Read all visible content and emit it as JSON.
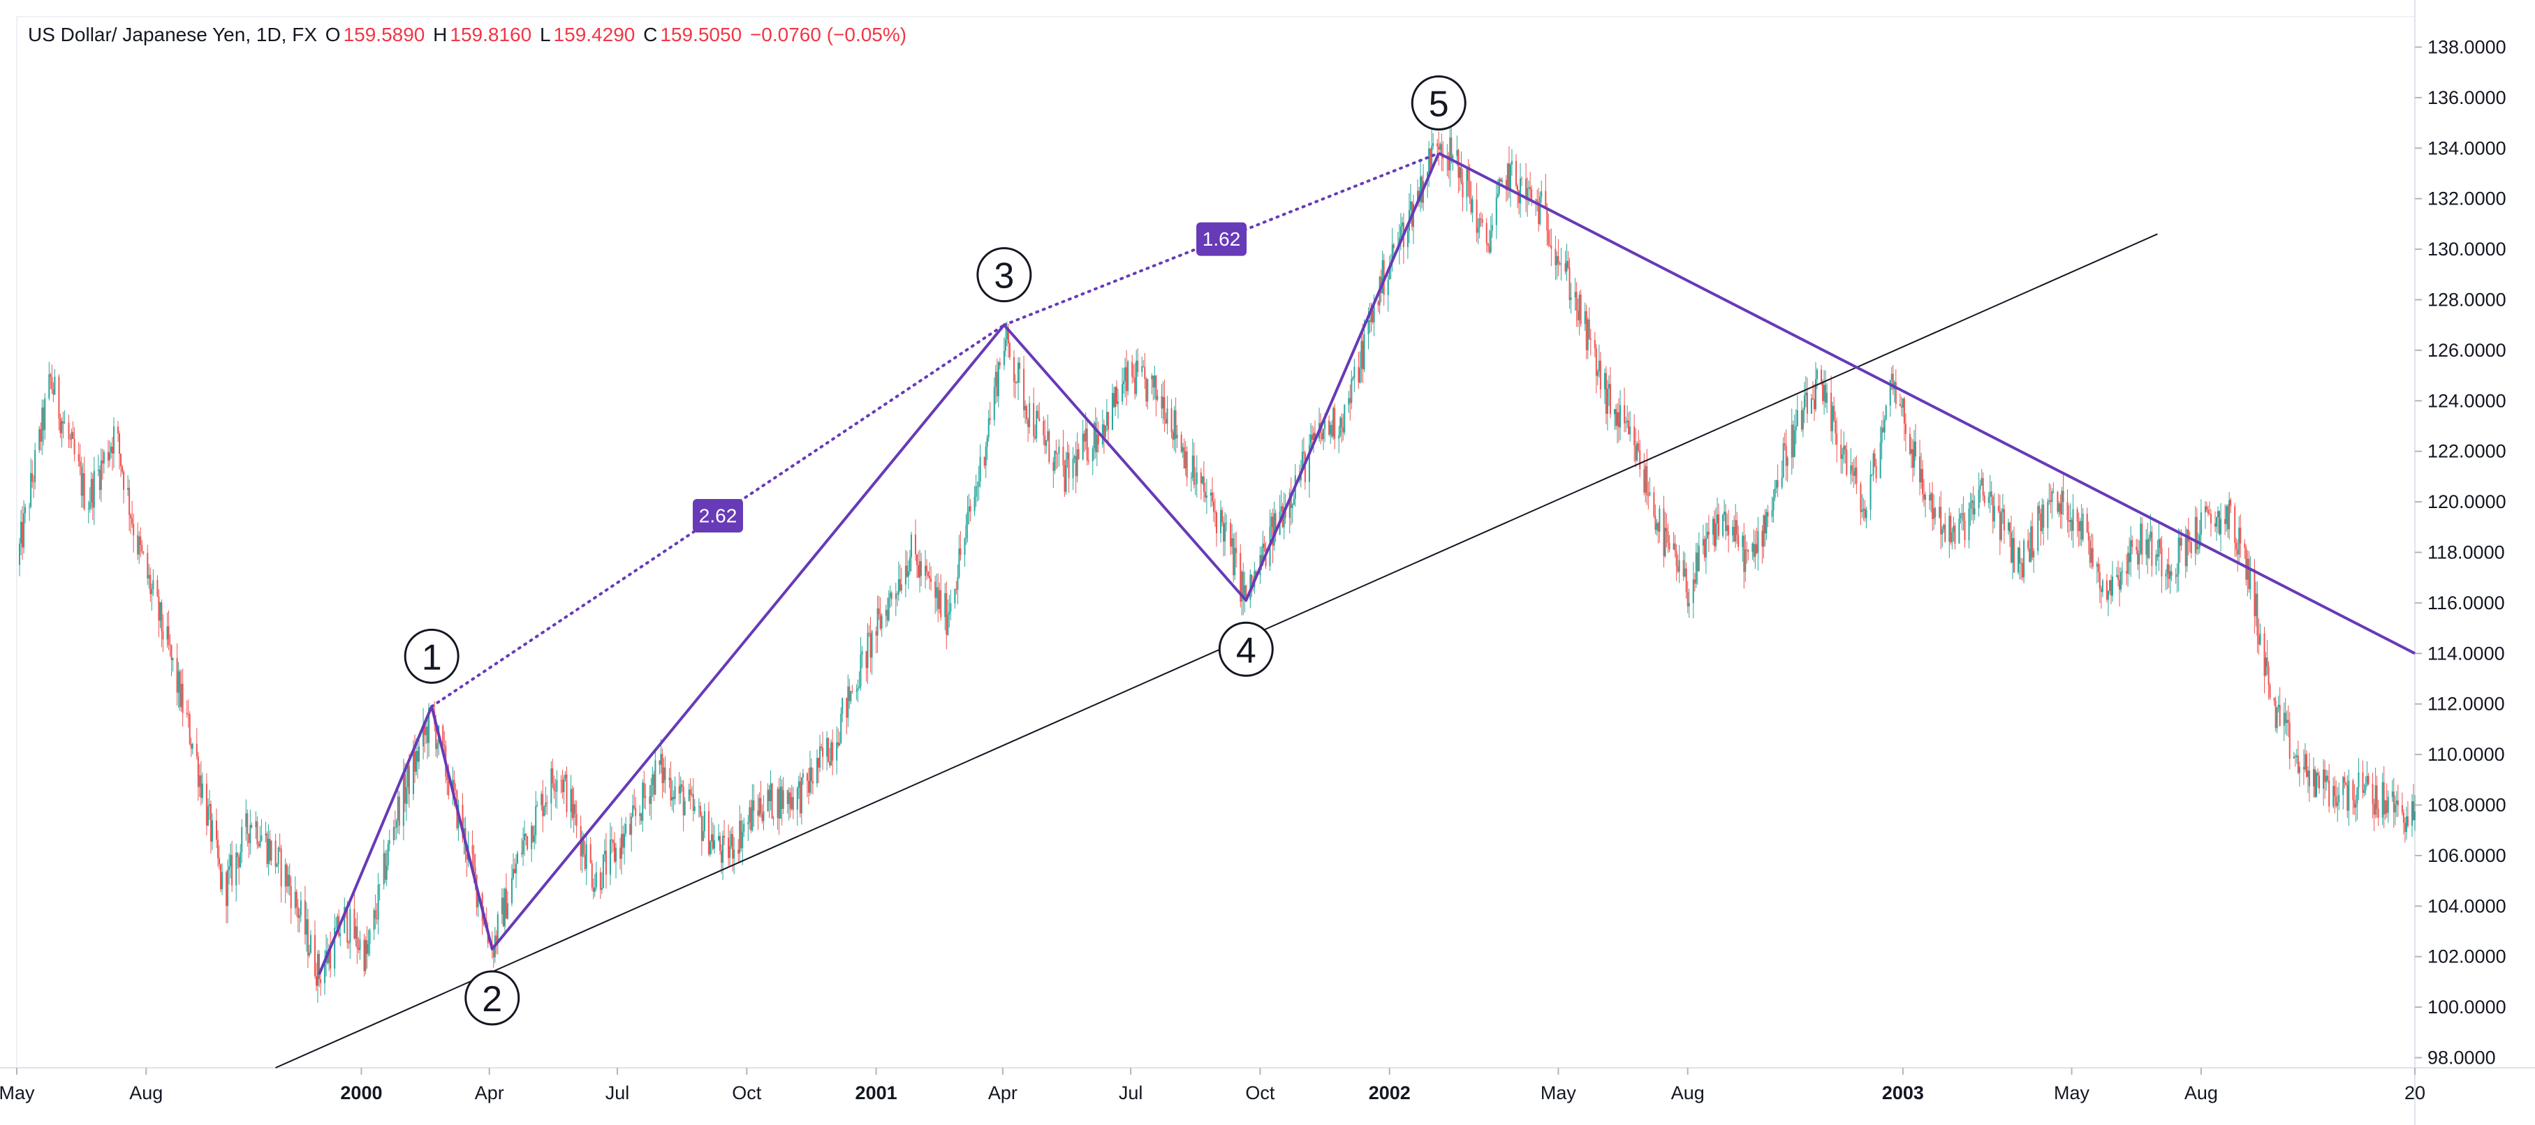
{
  "legend": {
    "symbol": "US Dollar/ Japanese Yen, 1D, FX",
    "o_label": "O",
    "o_value": "159.5890",
    "h_label": "H",
    "h_value": "159.8160",
    "l_label": "L",
    "l_value": "159.4290",
    "c_label": "C",
    "c_value": "159.5050",
    "change": "−0.0760 (−0.05%)"
  },
  "colors": {
    "up": "#26a69a",
    "down": "#ef5350",
    "wave": "#673ab7",
    "trendline": "#131722",
    "ratio_bg": "#673ab7",
    "grid": "#e0e3eb",
    "text": "#131722",
    "neg": "#f23645"
  },
  "chart_data": {
    "type": "candlestick",
    "x_axis": {
      "range": [
        "1999-05-01",
        "2003-12-31"
      ],
      "ticks": [
        {
          "date": "1999-05-01",
          "label": "May"
        },
        {
          "date": "1999-08-01",
          "label": "Aug"
        },
        {
          "date": "2000-01-01",
          "label": "2000"
        },
        {
          "date": "2000-04-01",
          "label": "Apr"
        },
        {
          "date": "2000-07-01",
          "label": "Jul"
        },
        {
          "date": "2000-10-01",
          "label": "Oct"
        },
        {
          "date": "2001-01-01",
          "label": "2001"
        },
        {
          "date": "2001-04-01",
          "label": "Apr"
        },
        {
          "date": "2001-07-01",
          "label": "Jul"
        },
        {
          "date": "2001-10-01",
          "label": "Oct"
        },
        {
          "date": "2002-01-01",
          "label": "2002"
        },
        {
          "date": "2002-05-01",
          "label": "May"
        },
        {
          "date": "2002-08-01",
          "label": "Aug"
        },
        {
          "date": "2003-01-01",
          "label": "2003"
        },
        {
          "date": "2003-05-01",
          "label": "May"
        },
        {
          "date": "2003-08-01",
          "label": "Aug"
        },
        {
          "date": "2003-12-31",
          "label": "20"
        }
      ]
    },
    "y_axis": {
      "range": [
        97.6,
        139.2
      ],
      "position": "right",
      "ticks": [
        "98.0000",
        "100.0000",
        "102.0000",
        "104.0000",
        "106.0000",
        "108.0000",
        "110.0000",
        "112.0000",
        "114.0000",
        "116.0000",
        "118.0000",
        "120.0000",
        "122.0000",
        "124.0000",
        "126.0000",
        "128.0000",
        "130.0000",
        "132.0000",
        "134.0000",
        "136.0000",
        "138.0000"
      ]
    },
    "price_path": [
      [
        "1999-05-01",
        117.5
      ],
      [
        "1999-05-25",
        124.8
      ],
      [
        "1999-06-20",
        120.0
      ],
      [
        "1999-07-10",
        122.8
      ],
      [
        "1999-07-25",
        118.5
      ],
      [
        "1999-08-15",
        114.5
      ],
      [
        "1999-09-05",
        110.0
      ],
      [
        "1999-09-25",
        104.5
      ],
      [
        "1999-10-15",
        107.5
      ],
      [
        "1999-11-10",
        105.0
      ],
      [
        "1999-12-02",
        101.3
      ],
      [
        "1999-12-20",
        103.5
      ],
      [
        "2000-01-05",
        102.0
      ],
      [
        "2000-01-25",
        107.5
      ],
      [
        "2000-02-20",
        111.5
      ],
      [
        "2000-03-15",
        106.5
      ],
      [
        "2000-04-03",
        102.3
      ],
      [
        "2000-04-25",
        106.5
      ],
      [
        "2000-05-20",
        109.5
      ],
      [
        "2000-06-15",
        105.0
      ],
      [
        "2000-07-10",
        107.0
      ],
      [
        "2000-07-30",
        109.5
      ],
      [
        "2000-08-20",
        108.0
      ],
      [
        "2000-09-15",
        106.0
      ],
      [
        "2000-10-10",
        108.0
      ],
      [
        "2000-11-10",
        108.5
      ],
      [
        "2000-12-01",
        110.5
      ],
      [
        "2000-12-25",
        114.0
      ],
      [
        "2001-01-25",
        118.0
      ],
      [
        "2001-02-20",
        115.5
      ],
      [
        "2001-03-15",
        121.0
      ],
      [
        "2001-04-02",
        126.5
      ],
      [
        "2001-04-20",
        123.5
      ],
      [
        "2001-05-15",
        121.0
      ],
      [
        "2001-06-10",
        123.0
      ],
      [
        "2001-07-01",
        125.0
      ],
      [
        "2001-07-25",
        124.0
      ],
      [
        "2001-08-15",
        121.0
      ],
      [
        "2001-09-05",
        119.0
      ],
      [
        "2001-09-21",
        116.1
      ],
      [
        "2001-10-15",
        119.5
      ],
      [
        "2001-11-10",
        122.5
      ],
      [
        "2001-12-01",
        123.5
      ],
      [
        "2001-12-25",
        128.5
      ],
      [
        "2002-01-20",
        132.0
      ],
      [
        "2002-02-05",
        134.5
      ],
      [
        "2002-02-25",
        132.5
      ],
      [
        "2002-03-10",
        130.0
      ],
      [
        "2002-03-25",
        133.0
      ],
      [
        "2002-04-20",
        131.5
      ],
      [
        "2002-05-10",
        128.5
      ],
      [
        "2002-06-05",
        124.0
      ],
      [
        "2002-06-25",
        122.0
      ],
      [
        "2002-07-15",
        118.5
      ],
      [
        "2002-08-01",
        116.5
      ],
      [
        "2002-08-25",
        119.5
      ],
      [
        "2002-09-15",
        117.5
      ],
      [
        "2002-10-10",
        122.0
      ],
      [
        "2002-11-01",
        124.5
      ],
      [
        "2002-11-20",
        122.0
      ],
      [
        "2002-12-05",
        119.5
      ],
      [
        "2002-12-25",
        125.0
      ],
      [
        "2003-01-15",
        120.5
      ],
      [
        "2003-02-05",
        118.5
      ],
      [
        "2003-03-01",
        120.5
      ],
      [
        "2003-03-25",
        117.5
      ],
      [
        "2003-04-15",
        120.0
      ],
      [
        "2003-05-05",
        119.5
      ],
      [
        "2003-05-25",
        116.5
      ],
      [
        "2003-06-20",
        118.5
      ],
      [
        "2003-07-10",
        117.5
      ],
      [
        "2003-08-01",
        119.0
      ],
      [
        "2003-08-20",
        119.5
      ],
      [
        "2003-09-05",
        117.0
      ],
      [
        "2003-09-20",
        112.0
      ],
      [
        "2003-10-10",
        109.5
      ],
      [
        "2003-11-01",
        108.5
      ],
      [
        "2003-11-25",
        108.5
      ],
      [
        "2003-12-31",
        107.5
      ]
    ],
    "wave_points": [
      {
        "label": "",
        "date": "1999-12-02",
        "price": 101.3
      },
      {
        "label": "1",
        "date": "2000-02-20",
        "price": 111.9
      },
      {
        "label": "2",
        "date": "2000-04-03",
        "price": 102.3
      },
      {
        "label": "3",
        "date": "2001-04-02",
        "price": 127.0
      },
      {
        "label": "4",
        "date": "2001-09-21",
        "price": 116.1
      },
      {
        "label": "5",
        "date": "2002-02-05",
        "price": 133.8
      }
    ],
    "fib_lines": [
      {
        "from": "1",
        "to": "3",
        "ratio": "2.62"
      },
      {
        "from": "3",
        "to": "5",
        "ratio": "1.62"
      }
    ],
    "trendlines": [
      {
        "name": "support",
        "from": [
          "1999-11-01",
          97.6
        ],
        "to": [
          "2003-07-01",
          130.6
        ]
      },
      {
        "name": "resistance",
        "from": [
          "2002-02-05",
          133.8
        ],
        "to": [
          "2003-12-31",
          114.0
        ]
      }
    ]
  }
}
